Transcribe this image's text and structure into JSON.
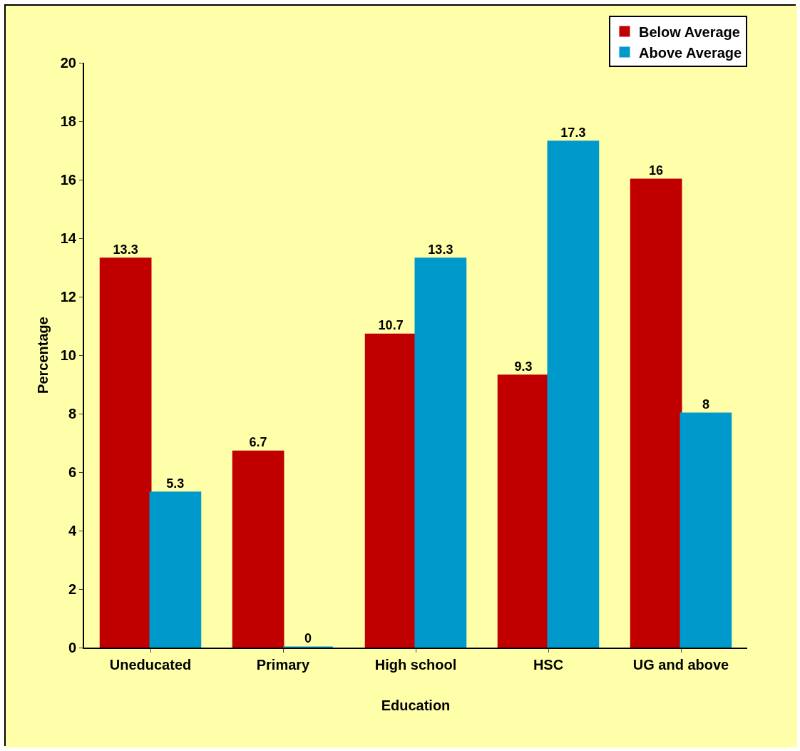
{
  "chart_data": {
    "type": "bar",
    "xlabel": "Education",
    "ylabel": "Percentage",
    "categories": [
      "Uneducated",
      "Primary",
      "High school",
      "HSC",
      "UG and above"
    ],
    "series": [
      {
        "name": "Below Average",
        "color": "#c00000",
        "values": [
          13.3,
          6.7,
          10.7,
          9.3,
          16
        ]
      },
      {
        "name": "Above Average",
        "color": "#0099cc",
        "values": [
          5.3,
          0,
          13.3,
          17.3,
          8
        ]
      }
    ],
    "ylim": [
      0,
      20
    ],
    "yticks": [
      0,
      2,
      4,
      6,
      8,
      10,
      12,
      14,
      16,
      18,
      20
    ],
    "grid": false,
    "legend": "top right",
    "data_labels": true
  }
}
